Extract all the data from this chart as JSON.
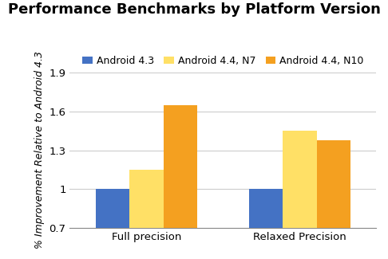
{
  "title": "Performance Benchmarks by Platform Version",
  "ylabel": "% Improvement Relative to Android 4.3",
  "categories": [
    "Full precision",
    "Relaxed Precision"
  ],
  "series": [
    {
      "label": "Android 4.3",
      "color": "#4472c4",
      "values": [
        1.0,
        1.0
      ]
    },
    {
      "label": "Android 4.4, N7",
      "color": "#ffe066",
      "values": [
        1.15,
        1.45
      ]
    },
    {
      "label": "Android 4.4, N10",
      "color": "#f4a020",
      "values": [
        1.65,
        1.38
      ]
    }
  ],
  "ylim": [
    0.7,
    1.9
  ],
  "yticks": [
    0.7,
    1.0,
    1.3,
    1.6,
    1.9
  ],
  "ytick_labels": [
    "0.7",
    "1",
    "1.3",
    "1.6",
    "1.9"
  ],
  "bar_width": 0.22,
  "background_color": "#ffffff",
  "grid_color": "#cccccc",
  "title_fontsize": 13,
  "legend_fontsize": 9,
  "axis_label_fontsize": 9.5,
  "ylabel_fontsize": 9
}
